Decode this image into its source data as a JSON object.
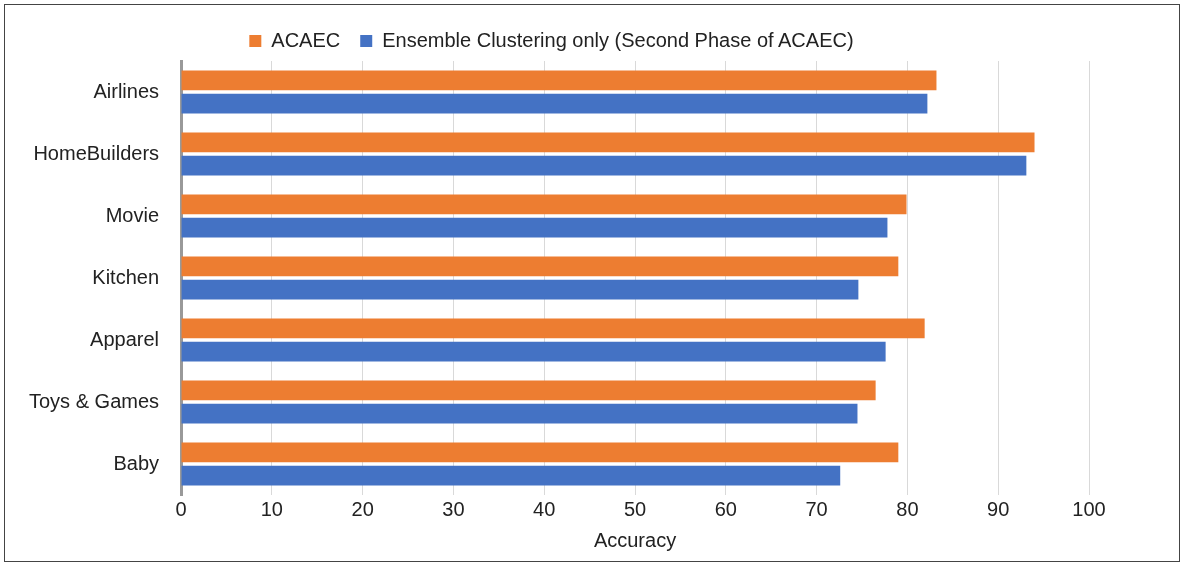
{
  "chart_data": {
    "type": "bar",
    "orientation": "horizontal",
    "xlabel": "Accuracy",
    "categories": [
      "Airlines",
      "HomeBuilders",
      "Movie",
      "Kitchen",
      "Apparel",
      "Toys & Games",
      "Baby"
    ],
    "series": [
      {
        "name": "ACAEC",
        "color": "#ed7d31",
        "values": [
          83.2,
          94,
          79.9,
          79,
          81.9,
          76.5,
          79
        ]
      },
      {
        "name": "Ensemble Clustering only (Second Phase of ACAEC)",
        "color": "#4472c4",
        "values": [
          82.2,
          93.1,
          77.8,
          74.6,
          77.6,
          74.5,
          72.6
        ]
      }
    ],
    "xlim": [
      0,
      100
    ],
    "xticks": [
      0,
      10,
      20,
      30,
      40,
      50,
      60,
      70,
      80,
      90,
      100
    ],
    "grid": "x",
    "legend": "top"
  }
}
